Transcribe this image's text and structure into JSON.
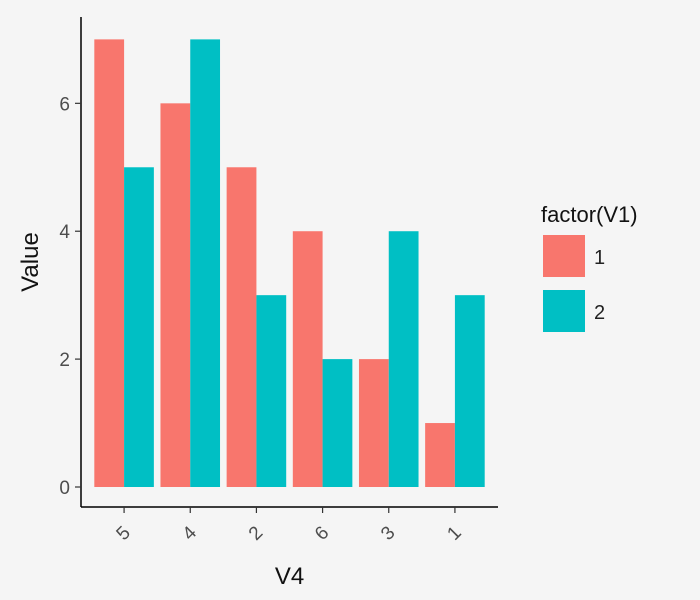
{
  "chart_data": {
    "type": "bar",
    "categories": [
      "5",
      "4",
      "2",
      "6",
      "3",
      "1"
    ],
    "series": [
      {
        "name": "1",
        "values": [
          7,
          6,
          5,
          4,
          2,
          1
        ],
        "color": "#F8766D"
      },
      {
        "name": "2",
        "values": [
          5,
          7,
          3,
          2,
          4,
          3
        ],
        "color": "#00BFC4"
      }
    ],
    "xlabel": "V4",
    "ylabel": "Value",
    "ylim": [
      0,
      7.35
    ],
    "yticks": [
      0,
      2,
      4,
      6
    ],
    "grid": false,
    "x_tick_rotation": "rotated",
    "legend": {
      "title": "factor(V1)",
      "placement": "right"
    }
  }
}
